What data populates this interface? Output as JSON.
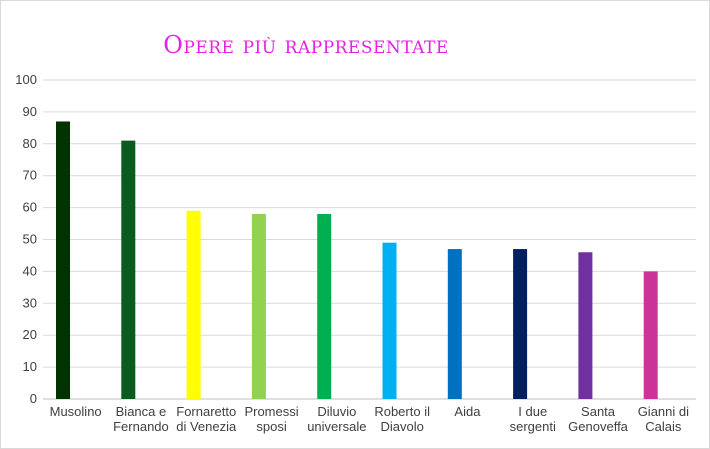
{
  "chart_data": {
    "type": "bar",
    "title": "Opere più rappresentate",
    "xlabel": "",
    "ylabel": "",
    "ylim": [
      0,
      100
    ],
    "yticks": [
      0,
      10,
      20,
      30,
      40,
      50,
      60,
      70,
      80,
      90,
      100
    ],
    "grid": true,
    "legend": "none",
    "categories": [
      [
        "Musolino"
      ],
      [
        "Bianca e",
        "Fernando"
      ],
      [
        "Fornaretto",
        "di Venezia"
      ],
      [
        "Promessi",
        "sposi"
      ],
      [
        "Diluvio",
        "universale"
      ],
      [
        "Roberto il",
        "Diavolo"
      ],
      [
        "Aida"
      ],
      [
        "I due",
        "sergenti"
      ],
      [
        "Santa",
        "Genoveffa"
      ],
      [
        "Gianni di",
        "Calais"
      ]
    ],
    "values": [
      87,
      81,
      59,
      58,
      58,
      49,
      47,
      47,
      46,
      40
    ],
    "colors": [
      "#003300",
      "#0b5a1f",
      "#ffff00",
      "#92d050",
      "#00b050",
      "#00b0f0",
      "#0070c0",
      "#002060",
      "#7030a0",
      "#cc3399"
    ]
  }
}
